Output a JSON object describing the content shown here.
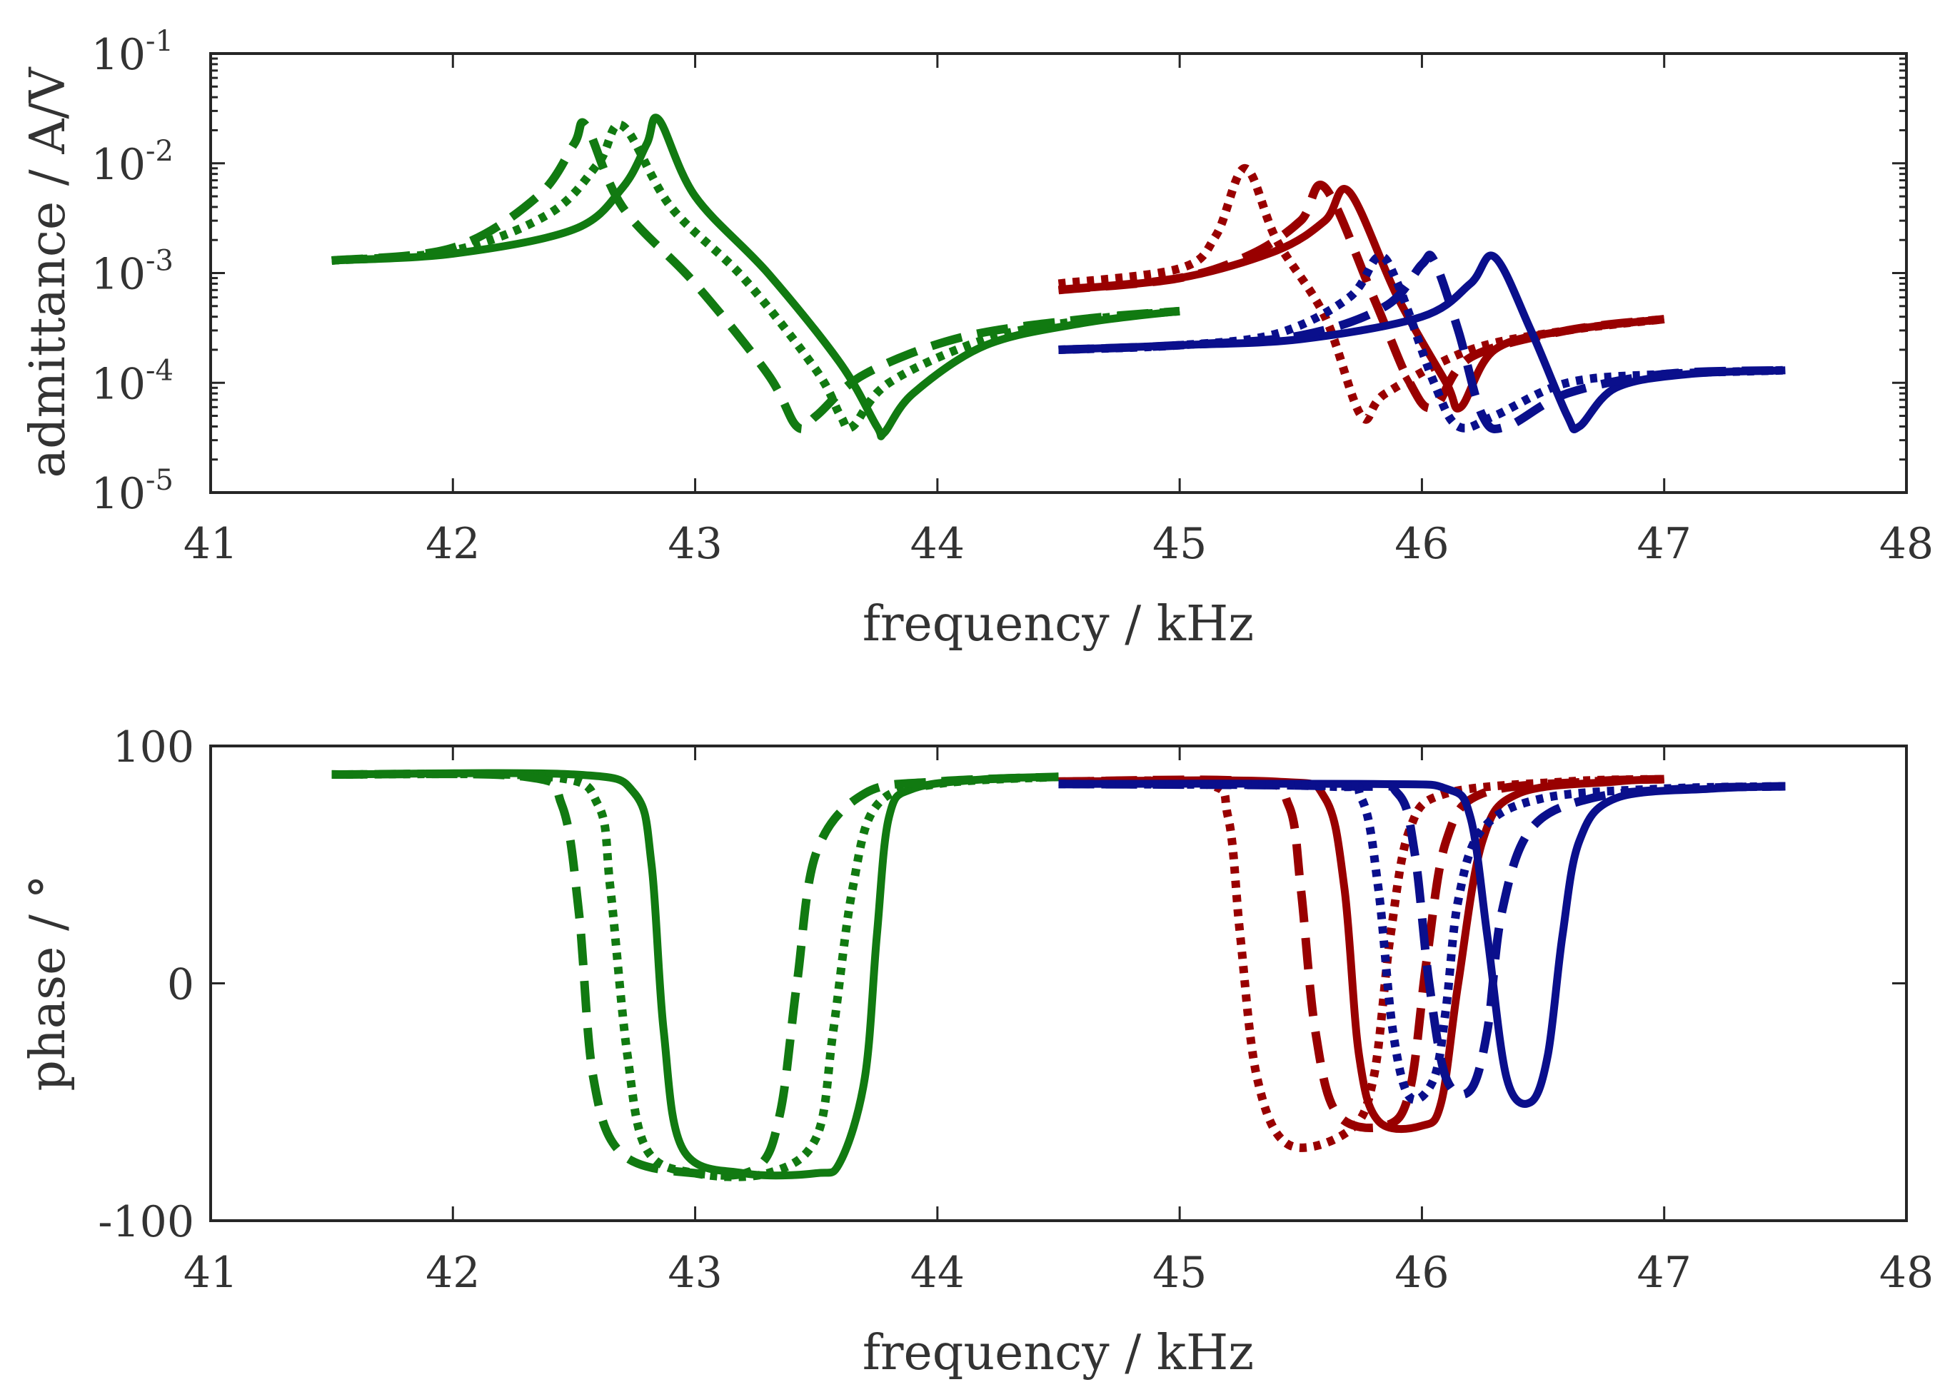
{
  "chart_data": [
    {
      "type": "line",
      "title": "",
      "xlabel": "frequency / kHz",
      "ylabel": "admittance / A/V",
      "yscale": "log",
      "xlim": [
        41,
        48
      ],
      "ylim": [
        1e-05,
        0.1
      ],
      "xticks": [
        "41",
        "42",
        "43",
        "44",
        "45",
        "46",
        "47",
        "48"
      ],
      "yticks": [
        {
          "value": 1e-05,
          "base": "10",
          "exp": "-5"
        },
        {
          "value": 0.0001,
          "base": "10",
          "exp": "-4"
        },
        {
          "value": 0.001,
          "base": "10",
          "exp": "-3"
        },
        {
          "value": 0.01,
          "base": "10",
          "exp": "-2"
        },
        {
          "value": 0.1,
          "base": "10",
          "exp": "-1"
        }
      ],
      "series": [
        {
          "name": "green solid",
          "color": "#117a11",
          "style": "solid",
          "x": [
            41.5,
            42.0,
            42.5,
            42.7,
            42.8,
            42.85,
            43.0,
            43.3,
            43.6,
            43.75,
            43.78,
            43.9,
            44.2,
            44.6,
            45.0
          ],
          "y": [
            0.0013,
            0.0015,
            0.0025,
            0.006,
            0.015,
            0.025,
            0.005,
            0.001,
            0.00015,
            4e-05,
            3.5e-05,
            8e-05,
            0.00022,
            0.00035,
            0.00045
          ]
        },
        {
          "name": "green dotted",
          "color": "#117a11",
          "style": "dotted",
          "x": [
            41.5,
            42.0,
            42.4,
            42.6,
            42.7,
            42.9,
            43.2,
            43.5,
            43.6,
            43.65,
            43.8,
            44.2,
            44.6,
            45.0
          ],
          "y": [
            0.0013,
            0.0016,
            0.0035,
            0.01,
            0.022,
            0.004,
            0.0009,
            0.00013,
            5e-05,
            4e-05,
            0.0001,
            0.00025,
            0.00037,
            0.00045
          ]
        },
        {
          "name": "green dashed",
          "color": "#117a11",
          "style": "dashed",
          "x": [
            41.5,
            42.0,
            42.35,
            42.5,
            42.55,
            42.7,
            43.0,
            43.3,
            43.42,
            43.5,
            43.7,
            44.1,
            44.6,
            45.0
          ],
          "y": [
            0.0013,
            0.0017,
            0.005,
            0.015,
            0.022,
            0.004,
            0.0008,
            0.00012,
            4e-05,
            5e-05,
            0.00012,
            0.00026,
            0.00038,
            0.00045
          ]
        },
        {
          "name": "red solid",
          "color": "#990000",
          "style": "solid",
          "x": [
            44.5,
            45.0,
            45.4,
            45.6,
            45.7,
            45.9,
            46.1,
            46.16,
            46.3,
            46.6,
            47.0
          ],
          "y": [
            0.0007,
            0.0009,
            0.0016,
            0.003,
            0.0055,
            0.0006,
            0.0001,
            6e-05,
            0.0002,
            0.0003,
            0.00038
          ]
        },
        {
          "name": "red dashed",
          "color": "#990000",
          "style": "dashed",
          "x": [
            44.5,
            45.0,
            45.3,
            45.5,
            45.6,
            45.8,
            45.95,
            46.05,
            46.2,
            46.6,
            47.0
          ],
          "y": [
            0.0007,
            0.0009,
            0.0015,
            0.003,
            0.006,
            0.0006,
            0.0001,
            6e-05,
            0.00017,
            0.0003,
            0.00038
          ]
        },
        {
          "name": "red dotted",
          "color": "#990000",
          "style": "dotted",
          "x": [
            44.5,
            45.0,
            45.15,
            45.27,
            45.4,
            45.6,
            45.75,
            45.85,
            46.2,
            46.6,
            47.0
          ],
          "y": [
            0.0008,
            0.0011,
            0.0022,
            0.009,
            0.002,
            0.0004,
            5e-05,
            8e-05,
            0.0002,
            0.0003,
            0.00038
          ]
        },
        {
          "name": "blue solid",
          "color": "#0a0f8c",
          "style": "solid",
          "x": [
            44.5,
            45.0,
            45.5,
            46.0,
            46.2,
            46.3,
            46.45,
            46.6,
            46.65,
            46.8,
            47.1,
            47.5
          ],
          "y": [
            0.0002,
            0.00022,
            0.00025,
            0.0004,
            0.0008,
            0.0014,
            0.0003,
            5e-05,
            4e-05,
            9e-05,
            0.00012,
            0.00013
          ]
        },
        {
          "name": "blue dashed",
          "color": "#0a0f8c",
          "style": "dashed",
          "x": [
            44.5,
            45.0,
            45.5,
            45.85,
            46.0,
            46.05,
            46.15,
            46.25,
            46.35,
            46.6,
            47.0,
            47.5
          ],
          "y": [
            0.0002,
            0.00022,
            0.00027,
            0.0005,
            0.0012,
            0.0013,
            0.0003,
            5e-05,
            4e-05,
            8e-05,
            0.00012,
            0.00013
          ]
        },
        {
          "name": "blue dotted",
          "color": "#0a0f8c",
          "style": "dotted",
          "x": [
            44.5,
            45.0,
            45.4,
            45.7,
            45.82,
            45.9,
            46.05,
            46.15,
            46.3,
            46.6,
            47.0,
            47.5
          ],
          "y": [
            0.0002,
            0.00022,
            0.00028,
            0.0006,
            0.0014,
            0.0008,
            0.0001,
            4e-05,
            5e-05,
            0.0001,
            0.00012,
            0.00013
          ]
        }
      ]
    },
    {
      "type": "line",
      "title": "",
      "xlabel": "frequency / kHz",
      "ylabel": "phase / °",
      "xlim": [
        41,
        48
      ],
      "ylim": [
        -100,
        100
      ],
      "xticks": [
        "41",
        "42",
        "43",
        "44",
        "45",
        "46",
        "47",
        "48"
      ],
      "yticks": [
        {
          "value": -100,
          "label": "-100"
        },
        {
          "value": 0,
          "label": "0"
        },
        {
          "value": 100,
          "label": "100"
        }
      ],
      "series": [
        {
          "name": "green solid",
          "color": "#117a11",
          "style": "solid",
          "x": [
            41.5,
            42.5,
            42.75,
            42.82,
            42.87,
            42.95,
            43.2,
            43.5,
            43.6,
            43.7,
            43.75,
            43.8,
            43.9,
            44.2,
            44.5
          ],
          "y": [
            88,
            88,
            80,
            50,
            -20,
            -70,
            -80,
            -80,
            -75,
            -40,
            20,
            70,
            82,
            86,
            87
          ]
        },
        {
          "name": "green dotted",
          "color": "#117a11",
          "style": "dotted",
          "x": [
            41.5,
            42.4,
            42.6,
            42.65,
            42.72,
            42.8,
            43.0,
            43.3,
            43.5,
            43.57,
            43.65,
            43.75,
            44.0,
            44.5
          ],
          "y": [
            88,
            87,
            75,
            40,
            -30,
            -70,
            -80,
            -80,
            -65,
            -20,
            40,
            75,
            84,
            87
          ]
        },
        {
          "name": "green dashed",
          "color": "#117a11",
          "style": "dashed",
          "x": [
            41.5,
            42.3,
            42.45,
            42.52,
            42.58,
            42.7,
            43.0,
            43.25,
            43.35,
            43.42,
            43.5,
            43.7,
            44.0,
            44.5
          ],
          "y": [
            88,
            87,
            75,
            30,
            -40,
            -72,
            -80,
            -78,
            -55,
            0,
            55,
            80,
            85,
            87
          ]
        },
        {
          "name": "red solid",
          "color": "#990000",
          "style": "solid",
          "x": [
            44.5,
            45.4,
            45.6,
            45.68,
            45.74,
            45.82,
            46.0,
            46.08,
            46.15,
            46.25,
            46.4,
            46.8,
            47.0
          ],
          "y": [
            85,
            85,
            78,
            40,
            -30,
            -58,
            -60,
            -50,
            0,
            60,
            80,
            85,
            86
          ]
        },
        {
          "name": "red dashed",
          "color": "#990000",
          "style": "dashed",
          "x": [
            44.5,
            45.3,
            45.45,
            45.5,
            45.56,
            45.65,
            45.85,
            45.95,
            46.02,
            46.1,
            46.25,
            46.7,
            47.0
          ],
          "y": [
            85,
            85,
            75,
            40,
            -20,
            -55,
            -60,
            -45,
            10,
            60,
            80,
            85,
            86
          ]
        },
        {
          "name": "red dotted",
          "color": "#990000",
          "style": "dotted",
          "x": [
            44.5,
            45.1,
            45.2,
            45.25,
            45.32,
            45.45,
            45.7,
            45.8,
            45.87,
            45.95,
            46.1,
            46.6,
            47.0
          ],
          "y": [
            85,
            84,
            70,
            20,
            -40,
            -68,
            -62,
            -40,
            20,
            65,
            80,
            85,
            86
          ]
        },
        {
          "name": "blue solid",
          "color": "#0a0f8c",
          "style": "solid",
          "x": [
            44.5,
            45.8,
            46.1,
            46.2,
            46.27,
            46.35,
            46.45,
            46.52,
            46.58,
            46.65,
            46.8,
            47.2,
            47.5
          ],
          "y": [
            84,
            84,
            82,
            70,
            20,
            -40,
            -50,
            -30,
            20,
            60,
            78,
            82,
            83
          ]
        },
        {
          "name": "blue dashed",
          "color": "#0a0f8c",
          "style": "dashed",
          "x": [
            44.5,
            45.7,
            45.9,
            45.97,
            46.03,
            46.1,
            46.2,
            46.27,
            46.33,
            46.45,
            46.7,
            47.1,
            47.5
          ],
          "y": [
            84,
            83,
            80,
            55,
            0,
            -40,
            -45,
            -20,
            30,
            65,
            78,
            82,
            83
          ]
        },
        {
          "name": "blue dotted",
          "color": "#0a0f8c",
          "style": "dotted",
          "x": [
            44.5,
            45.6,
            45.75,
            45.82,
            45.88,
            45.95,
            46.05,
            46.1,
            46.15,
            46.25,
            46.5,
            47.0,
            47.5
          ],
          "y": [
            84,
            83,
            78,
            40,
            -20,
            -48,
            -40,
            -10,
            35,
            65,
            78,
            82,
            83
          ]
        }
      ]
    }
  ]
}
